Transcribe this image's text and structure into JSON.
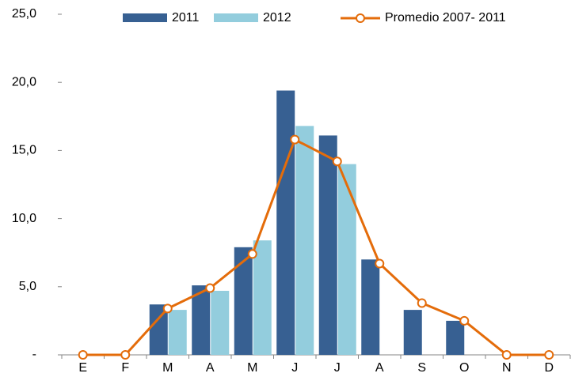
{
  "chart_data": {
    "type": "bar-line",
    "categories": [
      "E",
      "F",
      "M",
      "A",
      "M",
      "J",
      "J",
      "A",
      "S",
      "O",
      "N",
      "D"
    ],
    "series": [
      {
        "name": "2011",
        "type": "bar",
        "color": "#376092",
        "values": [
          null,
          null,
          3.7,
          5.1,
          7.9,
          19.4,
          16.1,
          7.0,
          3.3,
          2.5,
          null,
          null
        ]
      },
      {
        "name": "2012",
        "type": "bar",
        "color": "#93cddd",
        "values": [
          null,
          null,
          3.3,
          4.7,
          8.4,
          16.8,
          14.0,
          null,
          null,
          null,
          null,
          null
        ]
      },
      {
        "name": "Promedio 2007- 2011",
        "type": "line",
        "color": "#e46c0a",
        "values": [
          0,
          0,
          3.4,
          4.9,
          7.4,
          15.8,
          14.2,
          6.7,
          3.8,
          2.5,
          0,
          0
        ]
      }
    ],
    "ylim": [
      0,
      25
    ],
    "yticks": [
      {
        "value": 0,
        "label": "-"
      },
      {
        "value": 5,
        "label": "5,0"
      },
      {
        "value": 10,
        "label": "10,0"
      },
      {
        "value": 15,
        "label": "15,0"
      },
      {
        "value": 20,
        "label": "20,0"
      },
      {
        "value": 25,
        "label": "25,0"
      }
    ],
    "legend": "top"
  }
}
